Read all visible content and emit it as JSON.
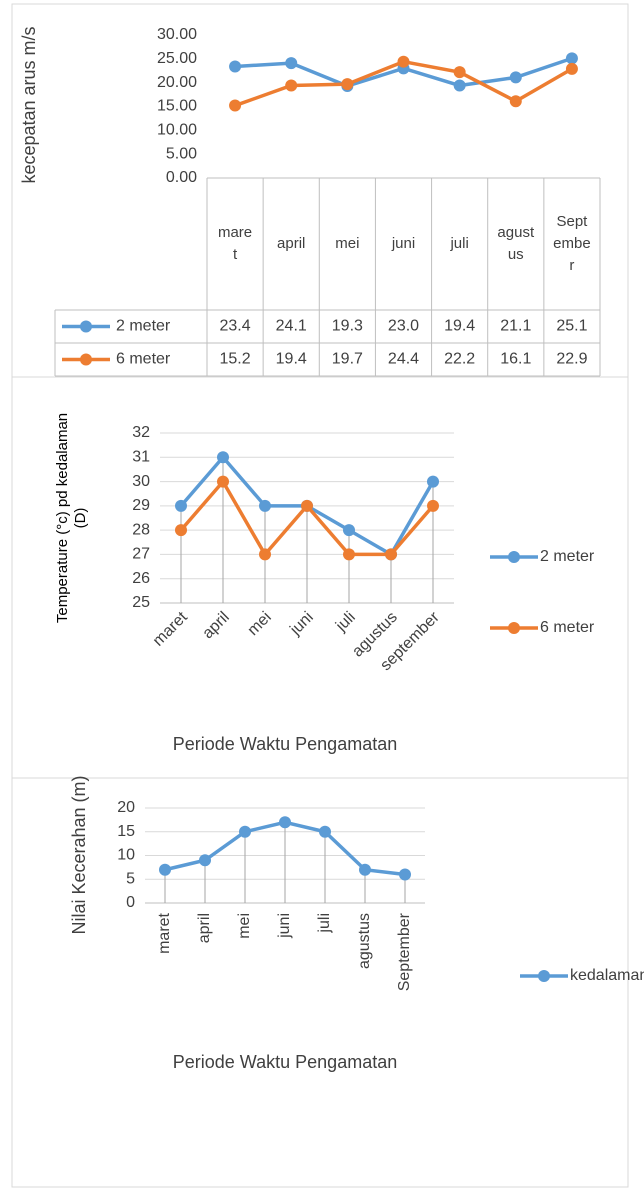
{
  "chart_data": [
    {
      "type": "line",
      "ylabel": "kecepatan arus m/s",
      "categories": [
        "maret",
        "april",
        "mei",
        "juni",
        "juli",
        "agustus",
        "September"
      ],
      "series": [
        {
          "name": "2 meter",
          "color": "#5b9bd5",
          "values": [
            23.4,
            24.1,
            19.3,
            23.0,
            19.4,
            21.1,
            25.1
          ],
          "value_labels": [
            "23.4",
            "24.1",
            "19.3",
            "23.0",
            "19.4",
            "21.1",
            "25.1"
          ]
        },
        {
          "name": "6 meter",
          "color": "#ed7d31",
          "values": [
            15.2,
            19.4,
            19.7,
            24.4,
            22.2,
            16.1,
            22.9
          ],
          "value_labels": [
            "15.2",
            "19.4",
            "19.7",
            "24.4",
            "22.2",
            "16.1",
            "22.9"
          ]
        }
      ],
      "ylim": [
        0,
        30
      ],
      "yticks": [
        {
          "value": 0,
          "label": "0.00"
        },
        {
          "value": 5,
          "label": "5.00"
        },
        {
          "value": 10,
          "label": "10.00"
        },
        {
          "value": 15,
          "label": "15.00"
        },
        {
          "value": 20,
          "label": "20.00"
        },
        {
          "value": 25,
          "label": "25.00"
        },
        {
          "value": 30,
          "label": "30.00"
        }
      ],
      "grid": false,
      "data_table": true
    },
    {
      "type": "line",
      "ylabel": "Temperature (°c) pd kedalaman (D)",
      "xlabel": "Periode Waktu Pengamatan",
      "categories": [
        "maret",
        "april",
        "mei",
        "juni",
        "juli",
        "agustus",
        "september"
      ],
      "series": [
        {
          "name": "2 meter",
          "color": "#5b9bd5",
          "values": [
            29,
            31,
            29,
            29,
            28,
            27,
            30
          ]
        },
        {
          "name": "6 meter",
          "color": "#ed7d31",
          "values": [
            28,
            30,
            27,
            29,
            27,
            27,
            29
          ]
        }
      ],
      "ylim": [
        25,
        32
      ],
      "yticks": [
        25,
        26,
        27,
        28,
        29,
        30,
        31,
        32
      ],
      "grid": true,
      "drop_lines": true,
      "legend": "right"
    },
    {
      "type": "line",
      "ylabel": "Nilai Kecerahan (m)",
      "xlabel": "Periode Waktu Pengamatan",
      "categories": [
        "maret",
        "april",
        "mei",
        "juni",
        "juli",
        "agustus",
        "September"
      ],
      "series": [
        {
          "name": "kedalaman",
          "color": "#5b9bd5",
          "values": [
            7,
            9,
            15,
            17,
            15,
            7,
            6
          ]
        }
      ],
      "ylim": [
        0,
        20
      ],
      "yticks": [
        0,
        5,
        10,
        15,
        20
      ],
      "grid": true,
      "drop_lines": true,
      "legend": "right"
    }
  ]
}
